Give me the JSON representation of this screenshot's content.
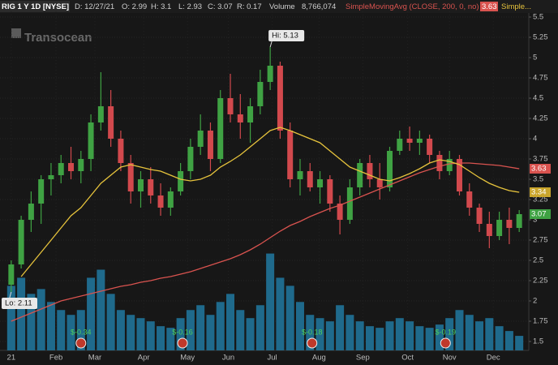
{
  "header": {
    "items": [
      "RIG 1 Y 1D [NYSE]",
      "D: 12/27/21",
      "O: 2.99",
      "H: 3.1",
      "L: 2.93",
      "C: 3.07",
      "R: 0.17",
      "Volume",
      "8,766,074"
    ]
  },
  "chart_data": {
    "type": "candlestick",
    "logo": "Transocean",
    "up_color": "#3fa243",
    "down_color": "#d2494d",
    "volume_color": "#1f6a8c",
    "open": [
      2.2,
      2.45,
      3.0,
      3.2,
      3.5,
      3.55,
      3.7,
      3.6,
      3.75,
      4.2,
      4.4,
      4.0,
      3.7,
      3.35,
      3.5,
      3.3,
      3.15,
      3.35,
      3.6,
      3.9,
      4.1,
      3.75,
      4.5,
      4.3,
      4.2,
      4.4,
      4.7,
      4.9,
      4.1,
      3.5,
      3.6,
      3.4,
      3.5,
      3.2,
      3.0,
      3.4,
      3.7,
      3.5,
      3.4,
      3.85,
      4.0,
      3.95,
      4.0,
      3.8,
      3.6,
      3.75,
      3.35,
      3.15,
      2.95,
      2.8,
      3.0,
      2.9
    ],
    "high": [
      2.5,
      3.05,
      3.35,
      3.55,
      3.7,
      3.8,
      3.9,
      3.85,
      4.3,
      4.82,
      4.6,
      4.1,
      3.8,
      3.6,
      3.65,
      3.45,
      3.4,
      3.7,
      4.0,
      4.3,
      4.2,
      4.6,
      4.8,
      4.55,
      4.5,
      4.85,
      5.13,
      4.95,
      4.2,
      3.75,
      3.7,
      3.6,
      3.55,
      3.3,
      3.5,
      3.75,
      3.8,
      3.7,
      3.9,
      4.1,
      4.15,
      4.1,
      4.05,
      3.85,
      3.85,
      3.8,
      3.45,
      3.2,
      3.1,
      3.1,
      3.15,
      3.12
    ],
    "low": [
      2.11,
      2.4,
      2.85,
      2.95,
      3.3,
      3.45,
      3.5,
      3.45,
      3.6,
      4.1,
      3.9,
      3.6,
      3.2,
      3.15,
      3.2,
      3.05,
      3.05,
      3.3,
      3.5,
      3.8,
      3.6,
      3.7,
      4.2,
      4.0,
      3.95,
      4.3,
      4.6,
      4.0,
      3.4,
      3.3,
      3.35,
      3.2,
      3.1,
      2.82,
      2.95,
      3.3,
      3.4,
      3.25,
      3.35,
      3.8,
      3.85,
      3.8,
      3.7,
      3.5,
      3.55,
      3.3,
      3.05,
      2.85,
      2.65,
      2.75,
      2.7,
      2.85
    ],
    "close": [
      2.45,
      3.0,
      3.2,
      3.5,
      3.55,
      3.7,
      3.6,
      3.75,
      4.2,
      4.4,
      4.0,
      3.7,
      3.35,
      3.5,
      3.3,
      3.15,
      3.35,
      3.6,
      3.9,
      4.1,
      3.75,
      4.5,
      4.3,
      4.2,
      4.4,
      4.7,
      4.9,
      4.1,
      3.5,
      3.6,
      3.4,
      3.5,
      3.2,
      3.0,
      3.4,
      3.7,
      3.5,
      3.4,
      3.85,
      4.0,
      3.95,
      4.0,
      3.8,
      3.6,
      3.75,
      3.35,
      3.15,
      2.95,
      2.8,
      3.0,
      2.9,
      3.07
    ],
    "volume": [
      40000000,
      45000000,
      35000000,
      38000000,
      30000000,
      25000000,
      22000000,
      25000000,
      45000000,
      50000000,
      35000000,
      25000000,
      22000000,
      20000000,
      18000000,
      15000000,
      14000000,
      20000000,
      25000000,
      28000000,
      22000000,
      30000000,
      35000000,
      25000000,
      20000000,
      28000000,
      60000000,
      45000000,
      40000000,
      30000000,
      22000000,
      20000000,
      18000000,
      28000000,
      22000000,
      18000000,
      15000000,
      14000000,
      18000000,
      20000000,
      18000000,
      15000000,
      14000000,
      16000000,
      20000000,
      25000000,
      22000000,
      18000000,
      20000000,
      15000000,
      12000000,
      9000000
    ],
    "volume_ylim": [
      0,
      210000000
    ],
    "series": [
      {
        "name": "SimpleMovingAvg (CLOSE, 200, 0, no)",
        "color": "#d9534f",
        "values": [
          1.75,
          1.8,
          1.85,
          1.9,
          1.95,
          2.0,
          2.03,
          2.06,
          2.09,
          2.12,
          2.15,
          2.18,
          2.2,
          2.23,
          2.25,
          2.28,
          2.3,
          2.33,
          2.36,
          2.4,
          2.44,
          2.48,
          2.52,
          2.57,
          2.63,
          2.7,
          2.78,
          2.86,
          2.93,
          2.98,
          3.04,
          3.09,
          3.14,
          3.18,
          3.23,
          3.28,
          3.33,
          3.38,
          3.43,
          3.48,
          3.53,
          3.58,
          3.62,
          3.66,
          3.69,
          3.7,
          3.7,
          3.69,
          3.68,
          3.67,
          3.65,
          3.63
        ]
      },
      {
        "name": "Simple...",
        "color": "#e6c33c",
        "values": [
          null,
          2.3,
          2.45,
          2.6,
          2.75,
          2.9,
          3.05,
          3.15,
          3.3,
          3.45,
          3.55,
          3.65,
          3.68,
          3.65,
          3.62,
          3.6,
          3.55,
          3.5,
          3.48,
          3.5,
          3.55,
          3.65,
          3.72,
          3.8,
          3.9,
          4.0,
          4.1,
          4.14,
          4.1,
          4.05,
          4.0,
          3.95,
          3.85,
          3.75,
          3.65,
          3.6,
          3.55,
          3.5,
          3.48,
          3.52,
          3.57,
          3.63,
          3.7,
          3.74,
          3.72,
          3.68,
          3.6,
          3.52,
          3.45,
          3.4,
          3.36,
          3.34
        ]
      }
    ],
    "ylim": [
      1.39,
      5.57
    ],
    "yticks": [
      1.5,
      1.75,
      2,
      2.25,
      2.5,
      2.75,
      3,
      3.25,
      3.5,
      3.75,
      4,
      4.25,
      4.5,
      4.75,
      5,
      5.25,
      5.5
    ],
    "xlim": [
      -0.8,
      51.8
    ],
    "xticks": [
      {
        "value": 0,
        "label": "21"
      },
      {
        "value": 4.5,
        "label": "Feb"
      },
      {
        "value": 8.4,
        "label": "Mar"
      },
      {
        "value": 13.3,
        "label": "Apr"
      },
      {
        "value": 17.7,
        "label": "May"
      },
      {
        "value": 21.8,
        "label": "Jun"
      },
      {
        "value": 26.2,
        "label": "Jul"
      },
      {
        "value": 30.9,
        "label": "Aug"
      },
      {
        "value": 35.3,
        "label": "Sep"
      },
      {
        "value": 39.8,
        "label": "Oct"
      },
      {
        "value": 44.0,
        "label": "Nov"
      },
      {
        "value": 48.4,
        "label": "Dec"
      }
    ],
    "grid": true,
    "annotations": [
      {
        "x": 26,
        "value": 5.13,
        "label": "Hi: 5.13"
      },
      {
        "x": 0,
        "value": 2.11,
        "label": "Lo: 2.11"
      }
    ],
    "events": [
      {
        "x": 7,
        "label": "$-0.34"
      },
      {
        "x": 17.2,
        "label": "$-0.16"
      },
      {
        "x": 30.2,
        "label": "$-0.18"
      },
      {
        "x": 43.6,
        "label": "$-0.19"
      }
    ]
  }
}
